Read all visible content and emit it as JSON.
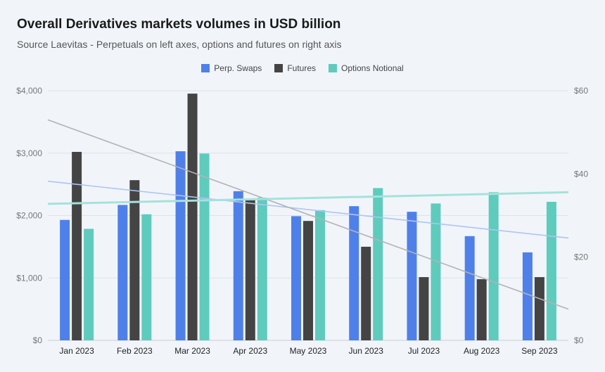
{
  "chart_data": {
    "type": "bar",
    "title": "Overall Derivatives markets volumes in USD billion",
    "subtitle": "Source Laevitas - Perpetuals on left axes, options and futures on right axis",
    "categories": [
      "Jan 2023",
      "Feb 2023",
      "Mar 2023",
      "Apr 2023",
      "May 2023",
      "Jun 2023",
      "Jul 2023",
      "Aug 2023",
      "Sep 2023"
    ],
    "series": [
      {
        "name": "Perp. Swaps",
        "axis": "left",
        "color": "#4f80ea",
        "values": [
          1930,
          2170,
          3030,
          2390,
          1990,
          2150,
          2060,
          1670,
          1410
        ]
      },
      {
        "name": "Futures",
        "axis": "right",
        "color": "#444444",
        "values": [
          45.3,
          38.5,
          59.3,
          33.7,
          28.7,
          22.5,
          15.2,
          14.7,
          15.2
        ]
      },
      {
        "name": "Options Notional",
        "axis": "right",
        "color": "#5ecbbd",
        "values": [
          26.8,
          30.3,
          44.9,
          34.3,
          31.3,
          36.6,
          32.9,
          35.6,
          33.3
        ]
      }
    ],
    "trendlines": [
      {
        "name": "Perp. Swaps trend",
        "color": "#aec4f2",
        "axis": "left",
        "start": 2550,
        "end": 1640
      },
      {
        "name": "Futures trend",
        "color": "#b3b3b3",
        "axis": "right",
        "start": 53,
        "end": 7.5
      },
      {
        "name": "Options Notional trend",
        "color": "#a5e2da",
        "axis": "right",
        "start": 32.8,
        "end": 35.6
      }
    ],
    "y_left": {
      "min": 0,
      "max": 4000,
      "ticks": [
        0,
        1000,
        2000,
        3000,
        4000
      ],
      "tick_labels": [
        "$0",
        "$1,000",
        "$2,000",
        "$3,000",
        "$4,000"
      ]
    },
    "y_right": {
      "min": 0,
      "max": 60,
      "ticks": [
        0,
        20,
        40,
        60
      ],
      "tick_labels": [
        "$0",
        "$20",
        "$40",
        "$60"
      ]
    },
    "grid": true,
    "legend": "top-center"
  }
}
